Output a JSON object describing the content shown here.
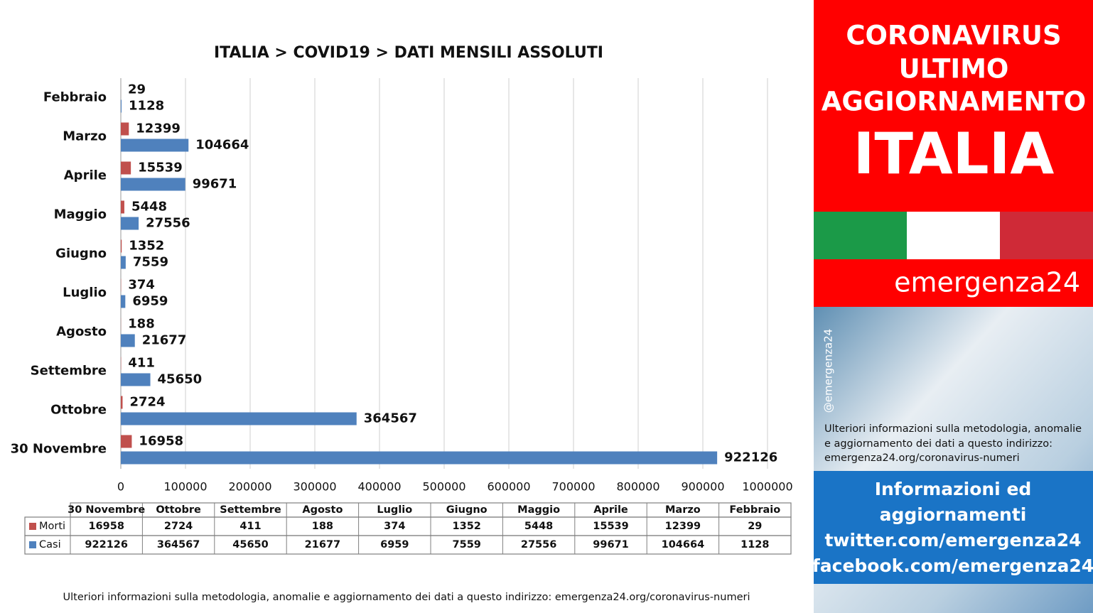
{
  "chart_data": {
    "type": "barh",
    "title": "ITALIA >  COVID19 > DATI MENSILI  ASSOLUTI",
    "categories": [
      "Febbraio",
      "Marzo",
      "Aprile",
      "Maggio",
      "Giugno",
      "Luglio",
      "Agosto",
      "Settembre",
      "Ottobre",
      "30 Novembre"
    ],
    "series": [
      {
        "name": "Morti",
        "color": "#c0504d",
        "values": [
          29,
          12399,
          15539,
          5448,
          1352,
          374,
          188,
          411,
          2724,
          16958
        ]
      },
      {
        "name": "Casi",
        "color": "#4f81bd",
        "values": [
          1128,
          104664,
          99671,
          27556,
          7559,
          6959,
          21677,
          45650,
          364567,
          922126
        ]
      }
    ],
    "xlim": [
      0,
      1000000
    ],
    "xticks": [
      0,
      100000,
      200000,
      300000,
      400000,
      500000,
      600000,
      700000,
      800000,
      900000,
      1000000
    ],
    "grid": true,
    "data_table": true
  },
  "footer": "Ulteriori informazioni sulla metodologia, anomalie e aggiornamento dei dati a questo indirizzo: emergenza24.org/coronavirus-numeri",
  "panel": {
    "headline": [
      "CORONAVIRUS",
      "ULTIMO",
      "AGGIORNAMENTO"
    ],
    "country": "ITALIA",
    "brand": "emergenza24",
    "handle": "@emergenza24",
    "info": [
      "Ulteriori informazioni sulla metodologia, anomalie",
      "e aggiornamento dei dati a questo indirizzo:",
      "emergenza24.org/coronavirus-numeri"
    ],
    "contacts": [
      "Informazioni ed",
      "aggiornamenti",
      "twitter.com/emergenza24",
      "facebook.com/emergenza24"
    ]
  }
}
